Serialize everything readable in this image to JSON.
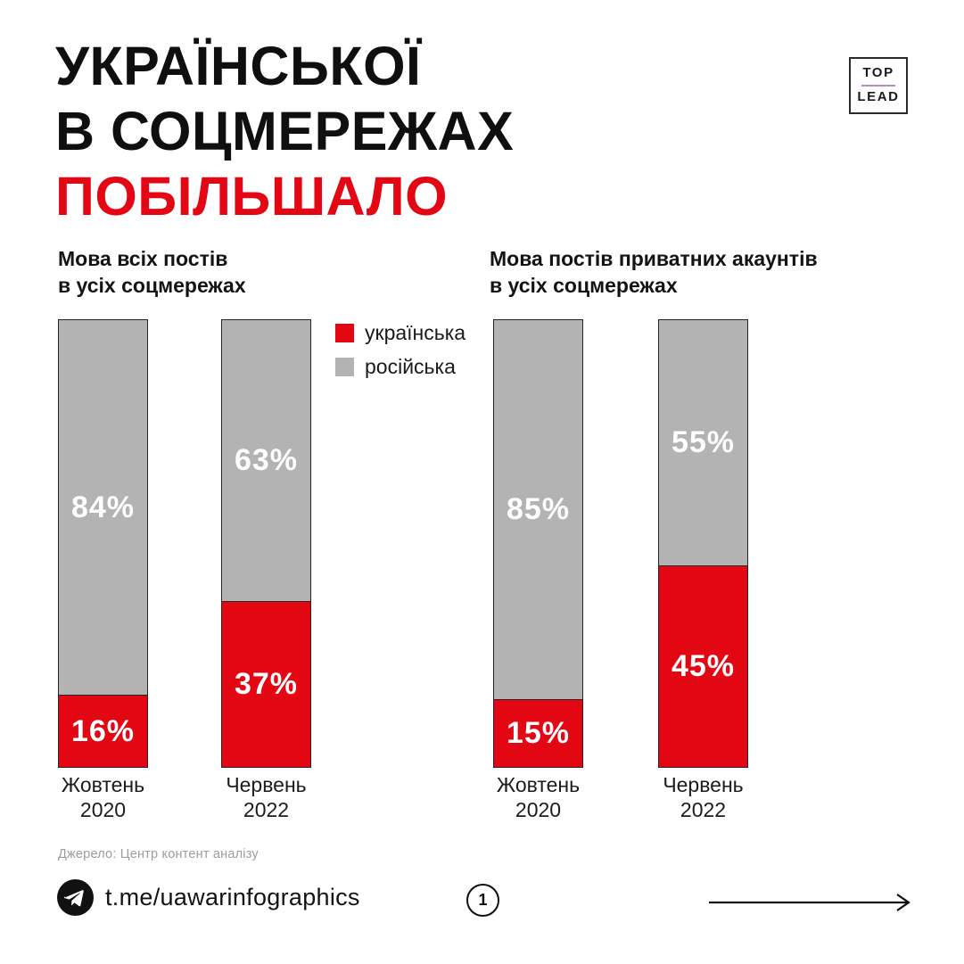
{
  "colors": {
    "accent_red": "#e30613",
    "bar_gray": "#b3b3b3",
    "bar_border": "#262626",
    "ink": "#0f0f0f",
    "muted": "#9d9d9d",
    "logo_divider": "#b48bc8"
  },
  "title": {
    "line1": "УКРАЇНСЬКОЇ",
    "line2": "В СОЦМЕРЕЖАХ",
    "line3": "ПОБІЛЬШАЛО"
  },
  "logo": {
    "top": "TOP",
    "lead": "LEAD"
  },
  "legend": [
    {
      "label": "українська",
      "color": "#e30613"
    },
    {
      "label": "російська",
      "color": "#b3b3b3"
    }
  ],
  "chart_data": [
    {
      "type": "bar",
      "stacked": true,
      "title": "Мова всіх постів\nв усіх соцмережах",
      "categories": [
        "Жовтень\n2020",
        "Червень\n2022"
      ],
      "series": [
        {
          "name": "українська",
          "color": "#e30613",
          "values": [
            16,
            37
          ]
        },
        {
          "name": "російська",
          "color": "#b3b3b3",
          "values": [
            84,
            63
          ]
        }
      ],
      "unit": "%",
      "ylim": [
        0,
        100
      ],
      "value_labels": "inside-center",
      "legend_position": "right-of-chart"
    },
    {
      "type": "bar",
      "stacked": true,
      "title": "Мова постів приватних акаунтів\nв усіх соцмережах",
      "categories": [
        "Жовтень\n2020",
        "Червень\n2022"
      ],
      "series": [
        {
          "name": "українська",
          "color": "#e30613",
          "values": [
            15,
            45
          ]
        },
        {
          "name": "російська",
          "color": "#b3b3b3",
          "values": [
            85,
            55
          ]
        }
      ],
      "unit": "%",
      "ylim": [
        0,
        100
      ],
      "value_labels": "inside-center",
      "legend_position": "shared"
    }
  ],
  "footer": {
    "source": "Джерело: Центр контент аналізу",
    "channel": "t.me/uawarinfographics",
    "page_number": "1"
  }
}
